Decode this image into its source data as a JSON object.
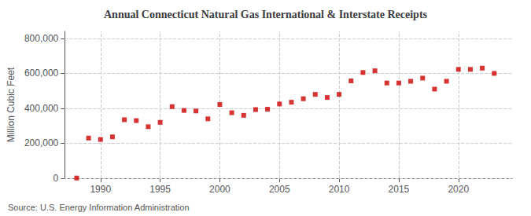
{
  "chart_data": {
    "type": "scatter",
    "title": "Annual Connecticut Natural Gas International & Interstate Receipts",
    "ylabel": "Million Cubic Feet",
    "annotations": [
      "Source: U.S. Energy Information Administration"
    ],
    "x": [
      1988,
      1989,
      1990,
      1991,
      1992,
      1993,
      1994,
      1995,
      1996,
      1997,
      1998,
      1999,
      2000,
      2001,
      2002,
      2003,
      2004,
      2005,
      2006,
      2007,
      2008,
      2009,
      2010,
      2011,
      2012,
      2013,
      2014,
      2015,
      2016,
      2017,
      2018,
      2019,
      2020,
      2021,
      2022,
      2023
    ],
    "values": [
      1500,
      230000,
      222000,
      237000,
      335000,
      330000,
      295000,
      320000,
      410000,
      388000,
      385000,
      340000,
      422000,
      375000,
      360000,
      393000,
      395000,
      425000,
      435000,
      455000,
      480000,
      462000,
      480000,
      557000,
      605000,
      615000,
      545000,
      545000,
      555000,
      573000,
      510000,
      555000,
      623000,
      623000,
      630000,
      600000
    ],
    "color": "#cc0000",
    "marker": "square",
    "xlim": [
      1987,
      2024.5
    ],
    "xticks": [
      1990,
      1995,
      2000,
      2005,
      2010,
      2015,
      2020
    ],
    "ylim": [
      0,
      840000
    ],
    "yticks": [
      0,
      {
        "value": 200000,
        "label": "200,000"
      },
      {
        "value": 400000,
        "label": "400,000"
      },
      {
        "value": 600000,
        "label": "600,000"
      },
      {
        "value": 800000,
        "label": "800,000"
      }
    ],
    "grid": true
  }
}
